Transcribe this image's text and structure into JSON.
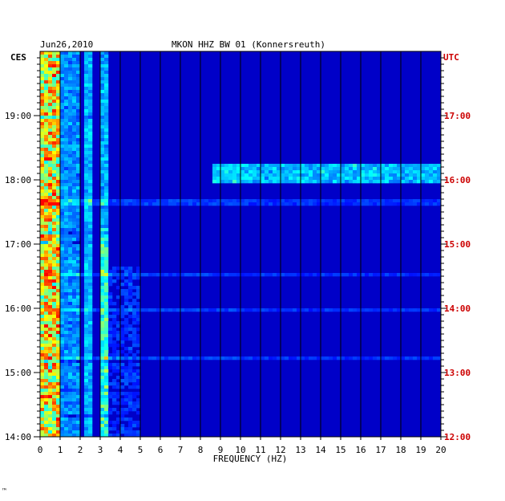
{
  "header": {
    "date": "Jun26,2010",
    "station": "MKON HHZ BW 01 (Konnersreuth)",
    "left_zone": "CES",
    "right_zone": "UTC"
  },
  "footer_mark": "™",
  "chart_data": {
    "type": "heatmap",
    "title": "MKON HHZ BW 01 (Konnersreuth)",
    "xlabel": "FREQUENCY (HZ)",
    "xlim": [
      0,
      20
    ],
    "x_ticks": [
      0,
      1,
      2,
      3,
      4,
      5,
      6,
      7,
      8,
      9,
      10,
      11,
      12,
      13,
      14,
      15,
      16,
      17,
      18,
      19,
      20
    ],
    "y_left_label": "CES",
    "y_right_label": "UTC",
    "y_left_ticks": [
      "19:00",
      "18:00",
      "17:00",
      "16:00",
      "15:00",
      "14:00"
    ],
    "y_right_ticks": [
      "17:00",
      "16:00",
      "15:00",
      "14:00",
      "13:00",
      "12:00"
    ],
    "time_range_utc": [
      "12:00",
      "18:00"
    ],
    "grid": true,
    "colormap": [
      "#00008b",
      "#0000ff",
      "#0080ff",
      "#00ffff",
      "#ffff00",
      "#ff0000"
    ],
    "features": [
      {
        "freq_hz": [
          0,
          1
        ],
        "description": "strong low-frequency energy across all times"
      },
      {
        "freq_hz": [
          2.3,
          2.6
        ],
        "description": "persistent spectral line"
      },
      {
        "freq_hz": [
          3,
          3.4
        ],
        "description": "persistent spectral line, stronger 12:00-15:30 UTC"
      },
      {
        "freq_hz": [
          8.5,
          20
        ],
        "time_utc": "15:50",
        "description": "broadband band of elevated energy"
      }
    ]
  }
}
